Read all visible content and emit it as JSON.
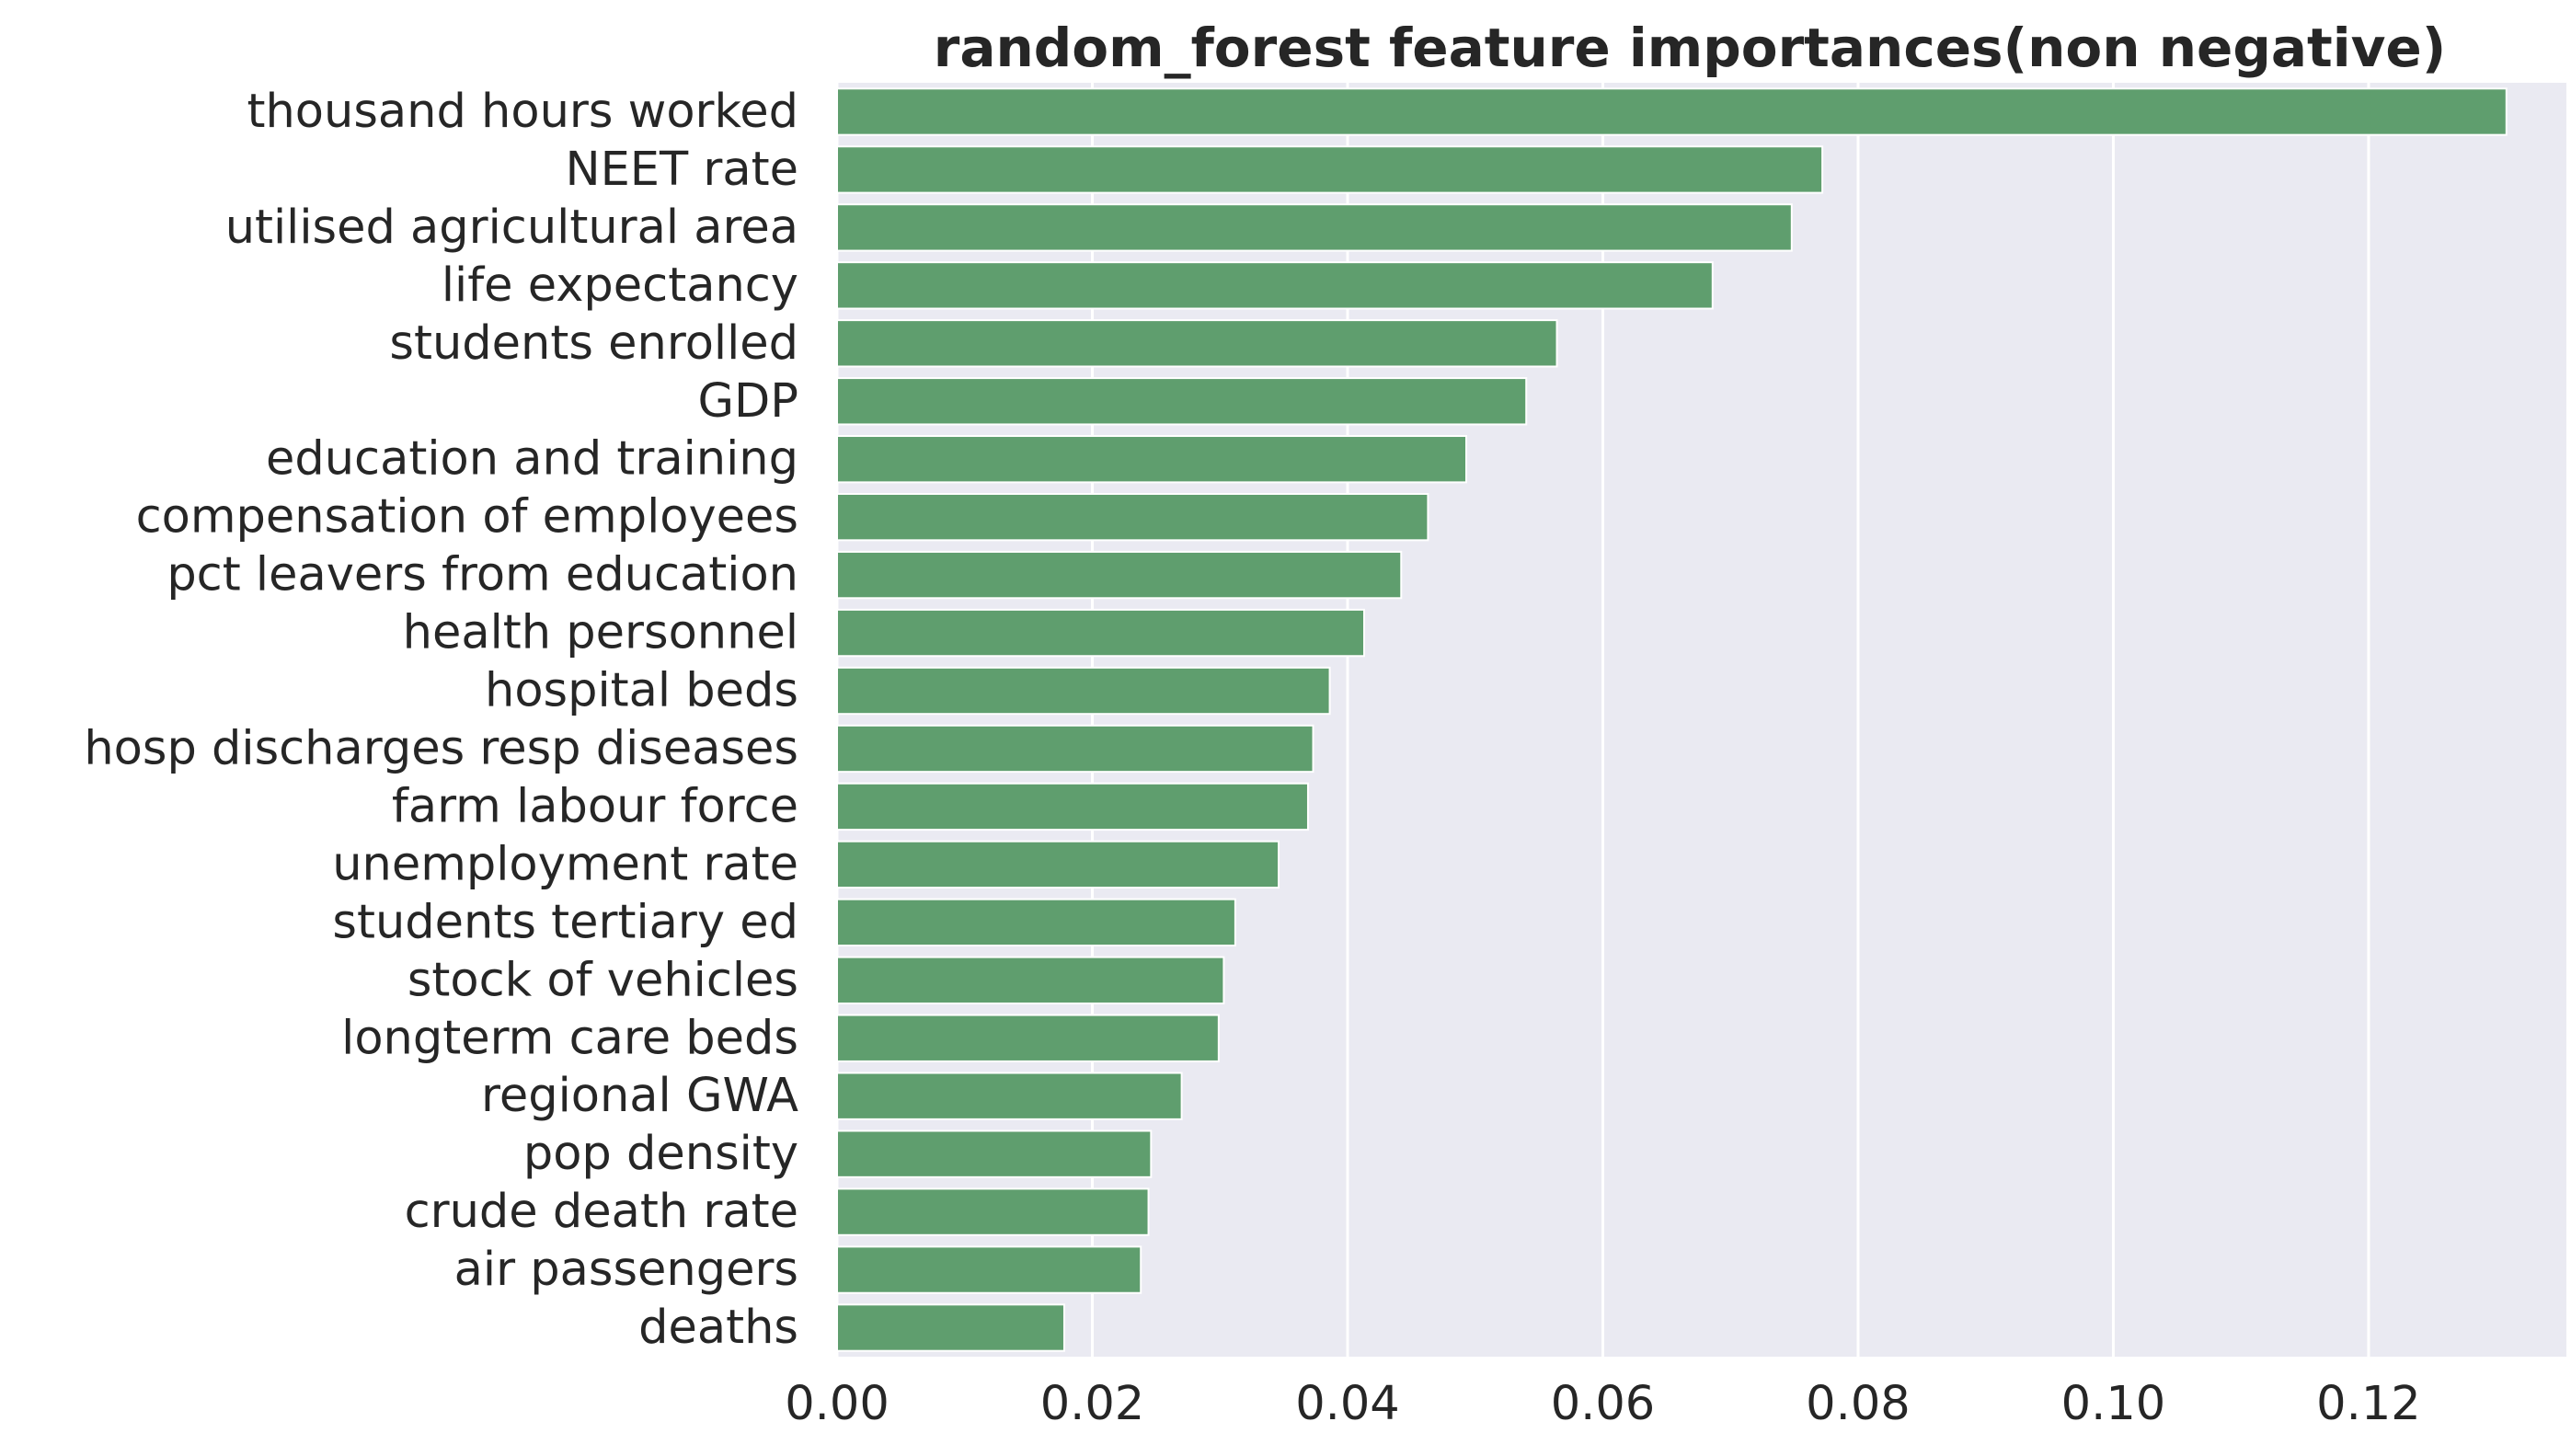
{
  "chart_data": {
    "type": "bar",
    "orientation": "horizontal",
    "title": "random_forest feature importances(non negative)",
    "xlabel": "",
    "ylabel": "",
    "categories": [
      "thousand hours worked",
      "NEET rate",
      "utilised agricultural area",
      "life expectancy",
      "students enrolled",
      "GDP",
      "education and training",
      "compensation of employees",
      "pct leavers from education",
      "health personnel",
      "hospital beds",
      "hosp discharges resp diseases",
      "farm labour force",
      "unemployment rate",
      "students tertiary ed",
      "stock of vehicles",
      "longterm care beds",
      "regional GWA",
      "pop density",
      "crude death rate",
      "air passengers",
      "deaths"
    ],
    "values": [
      0.1308,
      0.0772,
      0.0748,
      0.0686,
      0.0564,
      0.054,
      0.0493,
      0.0463,
      0.0442,
      0.0413,
      0.0386,
      0.0373,
      0.0369,
      0.0346,
      0.0312,
      0.0303,
      0.0299,
      0.027,
      0.0246,
      0.0244,
      0.0238,
      0.0178
    ],
    "xlim": [
      0,
      0.1355
    ],
    "xticks": [
      0.0,
      0.02,
      0.04,
      0.06,
      0.08,
      0.1,
      0.12
    ],
    "xtick_labels": [
      "0.00",
      "0.02",
      "0.04",
      "0.06",
      "0.08",
      "0.10",
      "0.12"
    ],
    "grid": true,
    "colors": {
      "bar": "#5f9e6e",
      "plot_background": "#eaeaf2",
      "grid": "#ffffff",
      "text": "#262626",
      "page_background": "#ffffff"
    }
  }
}
